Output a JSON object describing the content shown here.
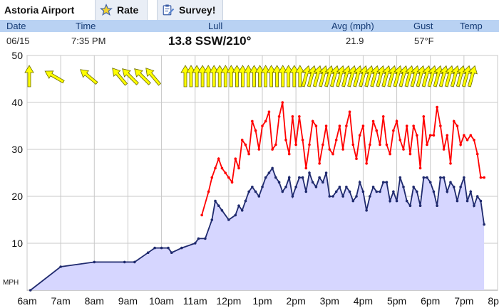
{
  "tabs": {
    "location": "Astoria Airport",
    "rate": "Rate",
    "survey": "Survey!",
    "rate_icon": "star-icon",
    "survey_icon": "clipboard-edit-icon"
  },
  "header": {
    "date": "Date",
    "time": "Time",
    "lull": "Lull",
    "avg": "Avg (mph)",
    "gust": "Gust",
    "temp": "Temp"
  },
  "current": {
    "date": "06/15",
    "time": "7:35 PM",
    "wind": "13.8 SSW/210°",
    "avg": "21.9",
    "gust": "57°F"
  },
  "colors": {
    "header_bg": "#b9d2f3",
    "avg_line": "#1f2a6e",
    "avg_fill": "#d6d6ff",
    "gust_line": "#ff0000",
    "arrow": "#ffff00"
  },
  "chart_data": {
    "type": "line",
    "ylabel": "MPH",
    "ylim": [
      0,
      50
    ],
    "yticks": [
      "10",
      "20",
      "30",
      "40",
      "50"
    ],
    "xlim": [
      6,
      20
    ],
    "xticks": [
      "6am",
      "7am",
      "8am",
      "9am",
      "10am",
      "11am",
      "12pm",
      "1pm",
      "2pm",
      "3pm",
      "4pm",
      "5pm",
      "6pm",
      "7pm",
      "8pm"
    ],
    "grid": true,
    "series": [
      {
        "key": "avg",
        "x": [
          6.1,
          7.0,
          8.0,
          8.9,
          9.2,
          9.6,
          9.8,
          10.0,
          10.2,
          10.3,
          10.6,
          11.0,
          11.1,
          11.3,
          11.5,
          11.6,
          11.7,
          11.8,
          12.0,
          12.2,
          12.3,
          12.4,
          12.5,
          12.6,
          12.7,
          12.8,
          12.9,
          13.0,
          13.1,
          13.2,
          13.3,
          13.4,
          13.5,
          13.6,
          13.7,
          13.8,
          13.9,
          14.0,
          14.1,
          14.2,
          14.3,
          14.4,
          14.5,
          14.6,
          14.7,
          14.8,
          14.9,
          15.0,
          15.1,
          15.2,
          15.3,
          15.4,
          15.5,
          15.6,
          15.7,
          15.8,
          15.9,
          16.0,
          16.1,
          16.2,
          16.3,
          16.4,
          16.5,
          16.6,
          16.7,
          16.8,
          16.9,
          17.0,
          17.1,
          17.2,
          17.3,
          17.4,
          17.5,
          17.6,
          17.7,
          17.8,
          17.9,
          18.0,
          18.1,
          18.2,
          18.3,
          18.4,
          18.5,
          18.6,
          18.7,
          18.8,
          18.9,
          19.0,
          19.1,
          19.2,
          19.3,
          19.4,
          19.5,
          19.6
        ],
        "y": [
          0,
          5,
          6,
          6,
          6,
          8,
          9,
          9,
          9,
          8,
          9,
          10,
          11,
          11,
          15,
          19,
          18,
          17,
          15,
          16,
          18,
          17,
          19,
          21,
          22,
          21,
          20,
          22,
          24,
          25,
          26,
          24,
          23,
          21,
          22,
          24,
          20,
          22,
          24,
          24,
          21,
          25,
          23,
          22,
          24,
          23,
          25,
          20,
          20,
          21,
          22,
          20,
          22,
          21,
          19,
          20,
          23,
          21,
          17,
          20,
          22,
          21,
          21,
          23,
          23,
          19,
          21,
          19,
          24,
          22,
          19,
          18,
          22,
          21,
          18,
          24,
          24,
          23,
          21,
          18,
          24,
          24,
          21,
          23,
          22,
          19,
          22,
          24,
          19,
          21,
          18,
          20,
          19,
          14
        ]
      },
      {
        "key": "gust",
        "x": [
          11.2,
          11.4,
          11.5,
          11.6,
          11.7,
          11.8,
          11.9,
          12.0,
          12.1,
          12.2,
          12.3,
          12.4,
          12.5,
          12.6,
          12.7,
          12.8,
          12.9,
          13.0,
          13.1,
          13.2,
          13.3,
          13.4,
          13.5,
          13.6,
          13.7,
          13.8,
          13.9,
          14.0,
          14.1,
          14.2,
          14.3,
          14.4,
          14.5,
          14.6,
          14.7,
          14.8,
          14.9,
          15.0,
          15.1,
          15.2,
          15.3,
          15.4,
          15.5,
          15.6,
          15.7,
          15.8,
          15.9,
          16.0,
          16.1,
          16.2,
          16.3,
          16.4,
          16.5,
          16.6,
          16.7,
          16.8,
          16.9,
          17.0,
          17.1,
          17.2,
          17.3,
          17.4,
          17.5,
          17.6,
          17.7,
          17.8,
          17.9,
          18.0,
          18.1,
          18.2,
          18.3,
          18.4,
          18.5,
          18.6,
          18.7,
          18.8,
          18.9,
          19.0,
          19.1,
          19.2,
          19.3,
          19.4,
          19.5,
          19.6
        ],
        "y": [
          16,
          21,
          24,
          26,
          28,
          26,
          25,
          24,
          23,
          28,
          26,
          32,
          31,
          29,
          36,
          34,
          30,
          35,
          36,
          38,
          30,
          31,
          37,
          40,
          32,
          29,
          37,
          31,
          37,
          32,
          26,
          31,
          36,
          35,
          27,
          31,
          35,
          30,
          29,
          32,
          35,
          30,
          35,
          38,
          31,
          28,
          33,
          35,
          27,
          31,
          36,
          34,
          31,
          37,
          31,
          29,
          34,
          36,
          32,
          30,
          35,
          29,
          35,
          33,
          26,
          37,
          31,
          33,
          33,
          39,
          35,
          30,
          33,
          27,
          36,
          35,
          31,
          33,
          32,
          33,
          32,
          29,
          24,
          24
        ]
      }
    ],
    "direction_arrows_deg": [
      0,
      300,
      310,
      320,
      315,
      315,
      320,
      0,
      0,
      0,
      0,
      0,
      0,
      0,
      0,
      0,
      0,
      0,
      0,
      0,
      0,
      0,
      0,
      0,
      0,
      0,
      0,
      0,
      15,
      15,
      15,
      15,
      15,
      15,
      15,
      15,
      15,
      15,
      15,
      15,
      15,
      15,
      15,
      15,
      15,
      15,
      15,
      15,
      15,
      15,
      15,
      15,
      15,
      15,
      15,
      15,
      15,
      15
    ]
  }
}
